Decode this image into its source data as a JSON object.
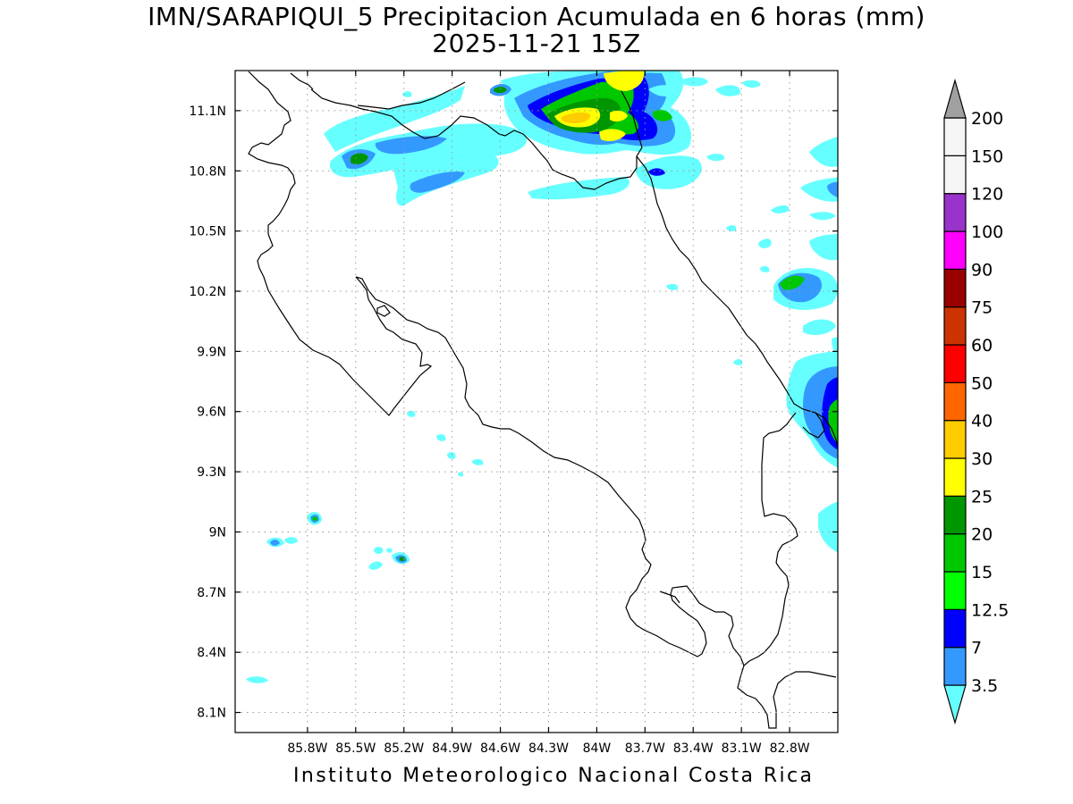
{
  "title": {
    "line1": "IMN/SARAPIQUI_5 Precipitacion Acumulada en 6 horas (mm)",
    "line2": "2025-11-21 15Z"
  },
  "footer": "Instituto Meteorologico Nacional Costa Rica",
  "axes": {
    "lon_ticks": [
      "85.8W",
      "85.5W",
      "85.2W",
      "84.9W",
      "84.6W",
      "84.3W",
      "84W",
      "83.7W",
      "83.4W",
      "83.1W",
      "82.8W"
    ],
    "lat_ticks": [
      "11.1N",
      "10.8N",
      "10.5N",
      "10.2N",
      "9.9N",
      "9.6N",
      "9.3N",
      "9N",
      "8.7N",
      "8.4N",
      "8.1N"
    ],
    "lon_values": [
      -85.8,
      -85.5,
      -85.2,
      -84.9,
      -84.6,
      -84.3,
      -84.0,
      -83.7,
      -83.4,
      -83.1,
      -82.8
    ],
    "lat_values": [
      11.1,
      10.8,
      10.5,
      10.2,
      9.9,
      9.6,
      9.3,
      9.0,
      8.7,
      8.4,
      8.1
    ],
    "lon_range": [
      -86.25,
      -82.5
    ],
    "lat_range": [
      8.0,
      11.3
    ],
    "grid": true
  },
  "colorbar": {
    "labels": [
      "3.5",
      "7",
      "12.5",
      "15",
      "20",
      "25",
      "30",
      "40",
      "50",
      "60",
      "75",
      "90",
      "100",
      "120",
      "150",
      "200"
    ],
    "colors": [
      "#66ffff",
      "#3399ff",
      "#0000ff",
      "#00ff00",
      "#00c800",
      "#009600",
      "#ffff00",
      "#ffcc00",
      "#ff6600",
      "#ff0000",
      "#cc3300",
      "#990000",
      "#ff00ff",
      "#9933cc",
      "#f5f5f5",
      "#a0a0a0"
    ]
  }
}
